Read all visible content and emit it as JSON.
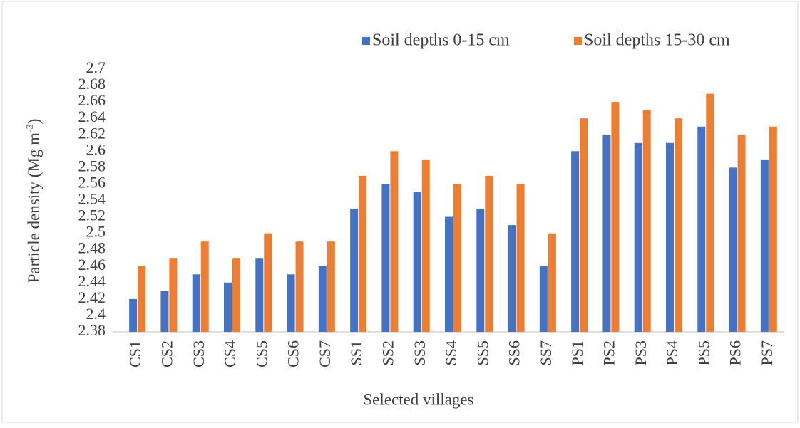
{
  "chart_data": {
    "type": "bar",
    "ylabel": {
      "text": "Particle density (Mg m",
      "sup": "-3",
      "end": ")"
    },
    "xlabel": "Selected villages",
    "categories": [
      "CS1",
      "CS2",
      "CS3",
      "CS4",
      "CS5",
      "CS6",
      "CS7",
      "SS1",
      "SS2",
      "SS3",
      "SS4",
      "SS5",
      "SS6",
      "SS7",
      "PS1",
      "PS2",
      "PS3",
      "PS4",
      "PS5",
      "PS6",
      "PS7"
    ],
    "series": [
      {
        "name": "Soil depths 0-15 cm",
        "color": "#4472c4",
        "values": [
          2.42,
          2.43,
          2.45,
          2.44,
          2.47,
          2.45,
          2.46,
          2.53,
          2.56,
          2.55,
          2.52,
          2.53,
          2.51,
          2.46,
          2.6,
          2.62,
          2.61,
          2.61,
          2.63,
          2.58,
          2.59
        ]
      },
      {
        "name": "Soil depths 15-30 cm",
        "color": "#ed7d31",
        "values": [
          2.46,
          2.47,
          2.49,
          2.47,
          2.5,
          2.49,
          2.49,
          2.57,
          2.6,
          2.59,
          2.56,
          2.57,
          2.56,
          2.5,
          2.64,
          2.66,
          2.65,
          2.64,
          2.67,
          2.62,
          2.63
        ]
      }
    ],
    "ylim": [
      2.38,
      2.7
    ],
    "yticks": [
      2.38,
      2.4,
      2.42,
      2.44,
      2.46,
      2.48,
      2.5,
      2.52,
      2.54,
      2.56,
      2.58,
      2.6,
      2.62,
      2.64,
      2.66,
      2.68,
      2.7
    ],
    "grid": false,
    "legend": "top-right"
  }
}
